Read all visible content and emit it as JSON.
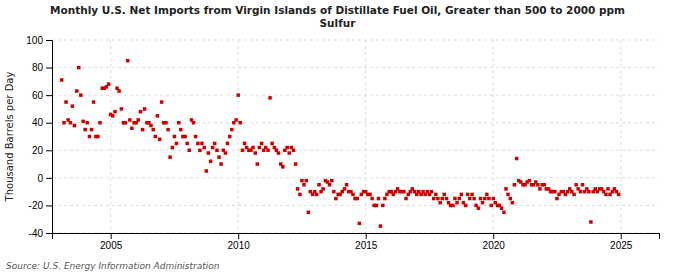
{
  "chart_data": {
    "type": "scatter",
    "title": "Monthly U.S. Net Imports from Virgin Islands of Distillate Fuel Oil, Greater than 500 to 2000 ppm\nSulfur",
    "ylabel": "Thousand Barrels per Day",
    "annotations": [
      "Source: U.S. Energy Information Administration"
    ],
    "color": "#cc0000",
    "marker": "square",
    "grid": true,
    "xlim": [
      2002.7,
      2026.5
    ],
    "xticks": [
      2005,
      2010,
      2015,
      2020,
      2025
    ],
    "ylim": [
      -40,
      100
    ],
    "yticks": [
      -40,
      -20,
      0,
      20,
      40,
      60,
      80,
      100
    ],
    "x": [
      2003.08,
      2003.17,
      2003.25,
      2003.33,
      2003.42,
      2003.5,
      2003.58,
      2003.67,
      2003.75,
      2003.83,
      2003.92,
      2004.0,
      2004.08,
      2004.17,
      2004.25,
      2004.33,
      2004.42,
      2004.5,
      2004.58,
      2004.67,
      2004.75,
      2004.83,
      2004.92,
      2005.0,
      2005.08,
      2005.17,
      2005.25,
      2005.33,
      2005.42,
      2005.5,
      2005.58,
      2005.67,
      2005.75,
      2005.83,
      2005.92,
      2006.0,
      2006.08,
      2006.17,
      2006.25,
      2006.33,
      2006.42,
      2006.5,
      2006.58,
      2006.67,
      2006.75,
      2006.83,
      2006.92,
      2007.0,
      2007.08,
      2007.17,
      2007.25,
      2007.33,
      2007.42,
      2007.5,
      2007.58,
      2007.67,
      2007.75,
      2007.83,
      2007.92,
      2008.0,
      2008.08,
      2008.17,
      2008.25,
      2008.33,
      2008.42,
      2008.5,
      2008.58,
      2008.67,
      2008.75,
      2008.83,
      2008.92,
      2009.0,
      2009.08,
      2009.17,
      2009.25,
      2009.33,
      2009.42,
      2009.5,
      2009.58,
      2009.67,
      2009.75,
      2009.83,
      2009.92,
      2010.0,
      2010.08,
      2010.17,
      2010.25,
      2010.33,
      2010.42,
      2010.5,
      2010.58,
      2010.67,
      2010.75,
      2010.83,
      2010.92,
      2011.0,
      2011.08,
      2011.17,
      2011.25,
      2011.33,
      2011.42,
      2011.5,
      2011.58,
      2011.67,
      2011.75,
      2011.83,
      2011.92,
      2012.0,
      2012.08,
      2012.17,
      2012.25,
      2012.33,
      2012.42,
      2012.5,
      2012.58,
      2012.67,
      2012.75,
      2012.83,
      2012.92,
      2013.0,
      2013.08,
      2013.17,
      2013.25,
      2013.33,
      2013.42,
      2013.5,
      2013.58,
      2013.67,
      2013.75,
      2013.83,
      2013.92,
      2014.0,
      2014.08,
      2014.17,
      2014.25,
      2014.33,
      2014.42,
      2014.5,
      2014.58,
      2014.67,
      2014.75,
      2014.83,
      2014.92,
      2015.0,
      2015.08,
      2015.17,
      2015.25,
      2015.33,
      2015.42,
      2015.5,
      2015.58,
      2015.67,
      2015.75,
      2015.83,
      2015.92,
      2016.0,
      2016.08,
      2016.17,
      2016.25,
      2016.33,
      2016.42,
      2016.5,
      2016.58,
      2016.67,
      2016.75,
      2016.83,
      2016.92,
      2017.0,
      2017.08,
      2017.17,
      2017.25,
      2017.33,
      2017.42,
      2017.5,
      2017.58,
      2017.67,
      2017.75,
      2017.83,
      2017.92,
      2018.0,
      2018.08,
      2018.17,
      2018.25,
      2018.33,
      2018.42,
      2018.5,
      2018.58,
      2018.67,
      2018.75,
      2018.83,
      2018.92,
      2019.0,
      2019.08,
      2019.17,
      2019.25,
      2019.33,
      2019.42,
      2019.5,
      2019.58,
      2019.67,
      2019.75,
      2019.83,
      2019.92,
      2020.0,
      2020.08,
      2020.17,
      2020.25,
      2020.33,
      2020.42,
      2020.5,
      2020.58,
      2020.67,
      2020.75,
      2020.83,
      2020.92,
      2021.0,
      2021.08,
      2021.17,
      2021.25,
      2021.33,
      2021.42,
      2021.5,
      2021.58,
      2021.67,
      2021.75,
      2021.83,
      2021.92,
      2022.0,
      2022.08,
      2022.17,
      2022.25,
      2022.33,
      2022.42,
      2022.5,
      2022.58,
      2022.67,
      2022.75,
      2022.83,
      2022.92,
      2023.0,
      2023.08,
      2023.17,
      2023.25,
      2023.33,
      2023.42,
      2023.5,
      2023.58,
      2023.67,
      2023.75,
      2023.83,
      2023.92,
      2024.0,
      2024.08,
      2024.17,
      2024.25,
      2024.33,
      2024.42,
      2024.5,
      2024.58,
      2024.67,
      2024.75,
      2024.83,
      2024.92
    ],
    "values": [
      71,
      40,
      55,
      42,
      40,
      52,
      38,
      63,
      80,
      60,
      41,
      35,
      40,
      30,
      35,
      55,
      30,
      30,
      40,
      65,
      65,
      66,
      68,
      46,
      45,
      48,
      65,
      63,
      50,
      40,
      40,
      85,
      42,
      36,
      40,
      40,
      42,
      48,
      35,
      50,
      40,
      40,
      38,
      35,
      30,
      45,
      28,
      55,
      40,
      40,
      35,
      15,
      22,
      30,
      25,
      40,
      35,
      30,
      30,
      25,
      20,
      42,
      40,
      30,
      25,
      20,
      25,
      22,
      5,
      18,
      12,
      22,
      25,
      20,
      15,
      10,
      20,
      18,
      25,
      30,
      35,
      40,
      42,
      60,
      40,
      20,
      25,
      22,
      20,
      20,
      22,
      18,
      10,
      22,
      25,
      20,
      22,
      20,
      58,
      25,
      22,
      20,
      18,
      10,
      8,
      20,
      22,
      18,
      22,
      20,
      10,
      -8,
      -12,
      -2,
      -5,
      -2,
      -25,
      -10,
      -12,
      -10,
      -12,
      -5,
      -10,
      -8,
      -2,
      -3,
      -5,
      -2,
      -10,
      -15,
      -12,
      -12,
      -10,
      -8,
      -5,
      -10,
      -10,
      -12,
      -15,
      -15,
      -33,
      -12,
      -10,
      -10,
      -12,
      -12,
      -15,
      -20,
      -20,
      -15,
      -35,
      -20,
      -15,
      -12,
      -10,
      -10,
      -12,
      -10,
      -8,
      -10,
      -10,
      -10,
      -15,
      -12,
      -10,
      -8,
      -10,
      -12,
      -10,
      -12,
      -10,
      -12,
      -10,
      -12,
      -10,
      -15,
      -12,
      -15,
      -18,
      -15,
      -12,
      -15,
      -18,
      -20,
      -20,
      -15,
      -18,
      -15,
      -12,
      -18,
      -20,
      -12,
      -15,
      -12,
      -15,
      -20,
      -22,
      -15,
      -18,
      -15,
      -12,
      -15,
      -20,
      -15,
      -18,
      -20,
      -20,
      -22,
      -25,
      -8,
      -12,
      -15,
      -18,
      -5,
      14,
      -2,
      -3,
      -5,
      -5,
      -3,
      -2,
      -5,
      -5,
      -3,
      -5,
      -8,
      -5,
      -5,
      -8,
      -8,
      -10,
      -10,
      -10,
      -15,
      -12,
      -10,
      -10,
      -12,
      -10,
      -8,
      -10,
      -12,
      -5,
      -8,
      -10,
      -5,
      -10,
      -8,
      -10,
      -32,
      -10,
      -8,
      -10,
      -8,
      -8,
      -10,
      -12,
      -8,
      -12,
      -10,
      -8,
      -10,
      -12
    ]
  }
}
